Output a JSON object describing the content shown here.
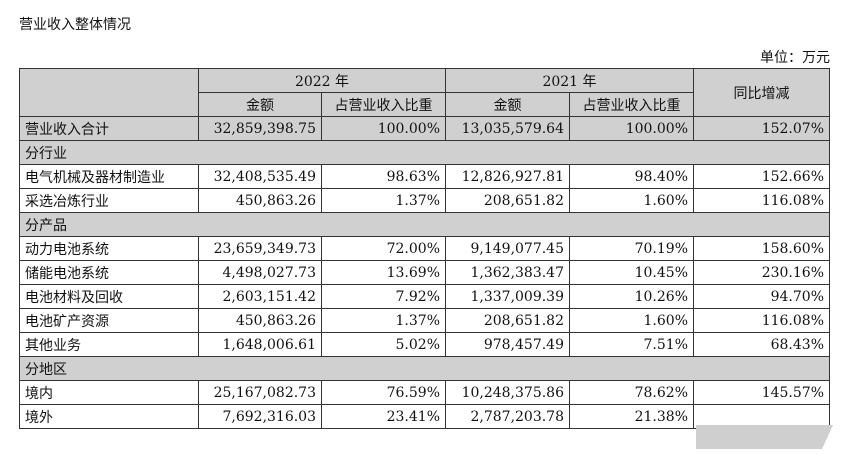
{
  "title": "营业收入整体情况",
  "unit": "单位：万元",
  "header": {
    "year_2022": "2022 年",
    "year_2021": "2021 年",
    "yoy": "同比增减",
    "amount_2022": "金额",
    "share_2022": "占营业收入比重",
    "amount_2021": "金额",
    "share_2021": "占营业收入比重"
  },
  "total": {
    "label": "营业收入合计",
    "c1": "32,859,398.75",
    "c2": "100.00%",
    "c3": "13,035,579.64",
    "c4": "100.00%",
    "c5": "152.07%"
  },
  "sections": [
    {
      "heading": "分行业",
      "rows": [
        {
          "label": "电气机械及器材制造业",
          "c1": "32,408,535.49",
          "c2": "98.63%",
          "c3": "12,826,927.81",
          "c4": "98.40%",
          "c5": "152.66%"
        },
        {
          "label": "采选冶炼行业",
          "c1": "450,863.26",
          "c2": "1.37%",
          "c3": "208,651.82",
          "c4": "1.60%",
          "c5": "116.08%"
        }
      ]
    },
    {
      "heading": "分产品",
      "rows": [
        {
          "label": "动力电池系统",
          "c1": "23,659,349.73",
          "c2": "72.00%",
          "c3": "9,149,077.45",
          "c4": "70.19%",
          "c5": "158.60%"
        },
        {
          "label": "储能电池系统",
          "c1": "4,498,027.73",
          "c2": "13.69%",
          "c3": "1,362,383.47",
          "c4": "10.45%",
          "c5": "230.16%"
        },
        {
          "label": "电池材料及回收",
          "c1": "2,603,151.42",
          "c2": "7.92%",
          "c3": "1,337,009.39",
          "c4": "10.26%",
          "c5": "94.70%"
        },
        {
          "label": "电池矿产资源",
          "c1": "450,863.26",
          "c2": "1.37%",
          "c3": "208,651.82",
          "c4": "1.60%",
          "c5": "116.08%"
        },
        {
          "label": "其他业务",
          "c1": "1,648,006.61",
          "c2": "5.02%",
          "c3": "978,457.49",
          "c4": "7.51%",
          "c5": "68.43%"
        }
      ]
    },
    {
      "heading": "分地区",
      "rows": [
        {
          "label": "境内",
          "c1": "25,167,082.73",
          "c2": "76.59%",
          "c3": "10,248,375.86",
          "c4": "78.62%",
          "c5": "145.57%"
        },
        {
          "label": "境外",
          "c1": "7,692,316.03",
          "c2": "23.41%",
          "c3": "2,787,203.78",
          "c4": "21.38%",
          "c5": ""
        }
      ]
    }
  ]
}
